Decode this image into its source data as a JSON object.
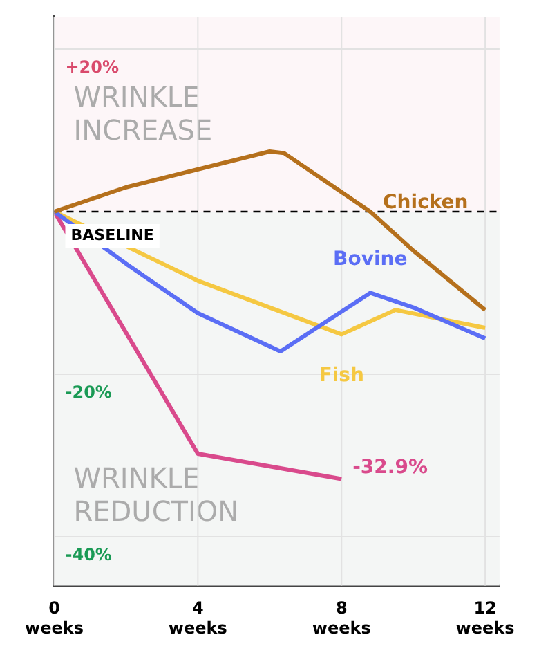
{
  "chart_data": {
    "type": "line",
    "ylim": [
      -46,
      24
    ],
    "yticks": [
      {
        "value": 20,
        "label": "+20%"
      },
      {
        "value": -20,
        "label": "-20%"
      },
      {
        "value": -40,
        "label": "-40%"
      }
    ],
    "xlim": [
      0,
      12.4
    ],
    "xticks": [
      {
        "value": 0,
        "label": "0 weeks"
      },
      {
        "value": 4,
        "label": "4 weeks"
      },
      {
        "value": 8,
        "label": "8 weeks"
      },
      {
        "value": 12,
        "label": "12 weeks"
      }
    ],
    "grid": true,
    "legend": false,
    "marker": "none",
    "line_style": "solid",
    "series": [
      {
        "name": "Chicken",
        "color": "#b5701c",
        "x": [
          0,
          2,
          6,
          6.4,
          8.8,
          10,
          12
        ],
        "values": [
          0,
          3,
          7.4,
          7.2,
          0,
          -4.8,
          -12.1
        ]
      },
      {
        "name": "Bovine",
        "color": "#5b6ef5",
        "x": [
          0,
          2,
          4,
          6.3,
          8.8,
          10,
          12
        ],
        "values": [
          0,
          -6.4,
          -12.5,
          -17.2,
          -10,
          -11.8,
          -15.6
        ]
      },
      {
        "name": "Fish",
        "color": "#f5c842",
        "x": [
          0,
          4,
          8,
          9.5,
          12
        ],
        "values": [
          0,
          -8.5,
          -15.1,
          -12.1,
          -14.3
        ]
      },
      {
        "color": "#d94a8c",
        "x": [
          0,
          4,
          8
        ],
        "values": [
          0,
          -29.8,
          -32.9
        ]
      }
    ],
    "ref_lines": [
      {
        "axis": "y",
        "value": 0,
        "label": "BASELINE",
        "color": "#000000",
        "line_style": "dashed"
      }
    ],
    "bands": [
      {
        "axis": "y",
        "from": 0,
        "to": 24,
        "label": "WRINKLE INCREASE",
        "color": "#fdf6f8"
      },
      {
        "axis": "y",
        "from": -46,
        "to": 0,
        "label": "WRINKLE REDUCTION",
        "color": "#f4f6f5"
      }
    ],
    "annotations": [
      {
        "text": "-32.9%",
        "x": 8,
        "y": -32.9
      }
    ]
  }
}
